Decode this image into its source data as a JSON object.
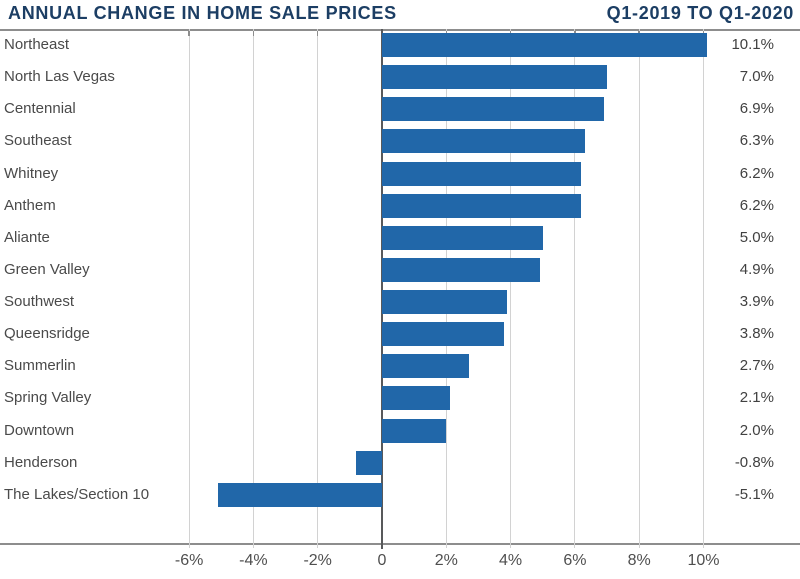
{
  "header": {
    "title": "ANNUAL CHANGE IN HOME SALE PRICES",
    "period": "Q1-2019 TO Q1-2020"
  },
  "chart_data": {
    "type": "bar",
    "orientation": "horizontal",
    "title": "ANNUAL CHANGE IN HOME SALE PRICES",
    "subtitle": "Q1-2019 TO Q1-2020",
    "categories": [
      "Northeast",
      "North Las Vegas",
      "Centennial",
      "Southeast",
      "Whitney",
      "Anthem",
      "Aliante",
      "Green Valley",
      "Southwest",
      "Queensridge",
      "Summerlin",
      "Spring Valley",
      "Downtown",
      "Henderson",
      "The Lakes/Section 10"
    ],
    "values": [
      10.1,
      7.0,
      6.9,
      6.3,
      6.2,
      6.2,
      5.0,
      4.9,
      3.9,
      3.8,
      2.7,
      2.1,
      2.0,
      -0.8,
      -5.1
    ],
    "value_labels": [
      "10.1%",
      "7.0%",
      "6.9%",
      "6.3%",
      "6.2%",
      "6.2%",
      "5.0%",
      "4.9%",
      "3.9%",
      "3.8%",
      "2.7%",
      "2.1%",
      "2.0%",
      "-0.8%",
      "-5.1%"
    ],
    "xlabel": "",
    "ylabel": "",
    "x_tick_values": [
      -6,
      -4,
      -2,
      0,
      2,
      4,
      6,
      8,
      10
    ],
    "x_tick_labels": [
      "-6%",
      "-4%",
      "-2%",
      "0",
      "2%",
      "4%",
      "6%",
      "8%",
      "10%"
    ],
    "grid": true,
    "legend": false,
    "colors": {
      "bar": "#2167a9",
      "title": "#1c3e64",
      "gridline": "#d2d2d2",
      "zero_line": "#58595b",
      "axis_line": "#8d8d8d",
      "category_label": "#4a4a4a",
      "value_label": "#414141",
      "tick_label": "#4f4f4f"
    }
  }
}
